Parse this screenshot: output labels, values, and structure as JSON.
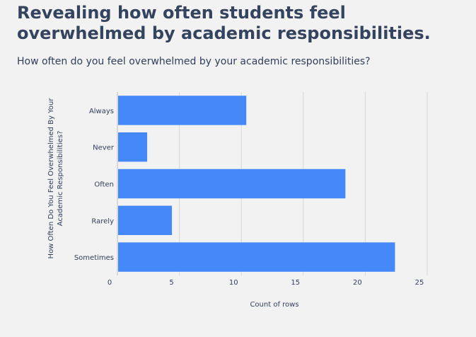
{
  "page": {
    "title": "Revealing how often students feel overwhelmed by academic responsibilities.",
    "subtitle": "How often do you feel overwhelmed by your academic responsibilities?"
  },
  "chart_data": {
    "type": "bar",
    "orientation": "horizontal",
    "categories": [
      "Always",
      "Never",
      "Often",
      "Rarely",
      "Sometimes"
    ],
    "values": [
      10,
      2,
      18,
      4,
      22
    ],
    "xlabel": "Count of rows",
    "ylabel_lines": [
      "How Often Do You Feel Overwhelmed By Your",
      "Academic Responsibilities?"
    ],
    "xlim": [
      0,
      25
    ],
    "xticks": [
      0,
      5,
      10,
      15,
      20,
      25
    ],
    "grid": "vertical",
    "legend": "none",
    "colors": {
      "bar": "#4589f8",
      "grid": "#d7d7d7",
      "text": "#2f3e5c",
      "background": "#f3f2f2"
    }
  }
}
